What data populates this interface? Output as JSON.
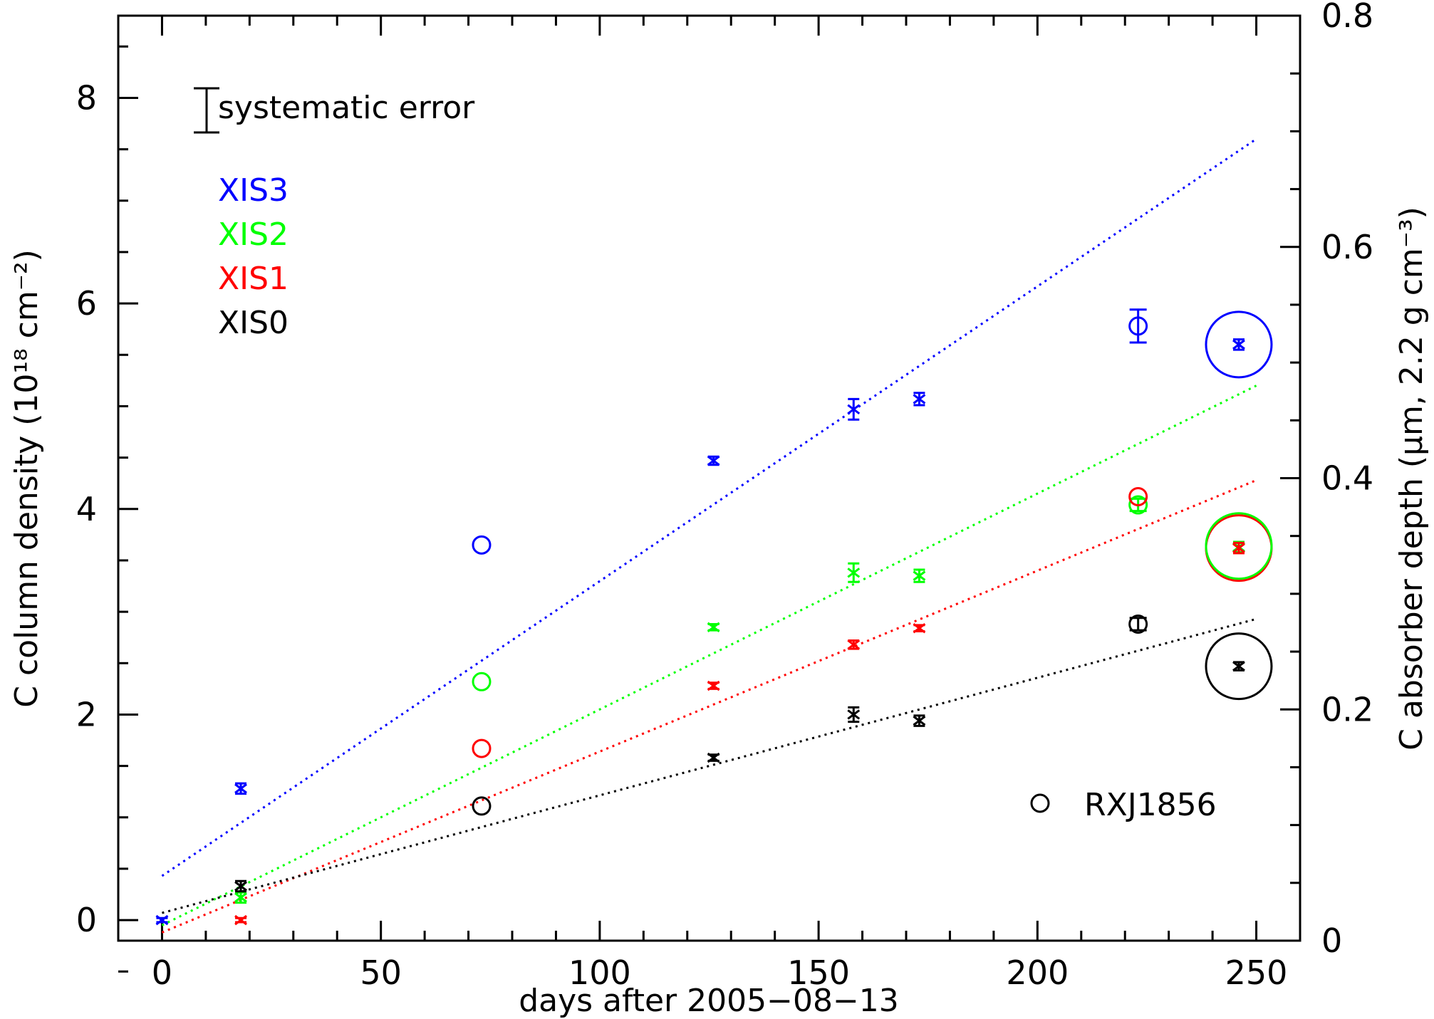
{
  "chart_data": {
    "type": "scatter",
    "xlabel": "days after 2005−08−13",
    "ylabel_left": "C column density (10¹⁸ cm⁻²)",
    "ylabel_right": "C absorber depth (μm, 2.2 g cm⁻³)",
    "xlim": [
      -10,
      260
    ],
    "ylim_left": [
      -0.2,
      8.8
    ],
    "ylim_right": [
      0,
      0.8
    ],
    "x_ticks": [
      "0",
      "50",
      "100",
      "150",
      "200",
      "250"
    ],
    "y_ticks_left": [
      "0",
      "2",
      "4",
      "6",
      "8"
    ],
    "y_ticks_right": [
      "0",
      "0.2",
      "0.4",
      "0.6",
      "0.8"
    ],
    "systematic_error_label": "systematic error",
    "reference_label": "RXJ1856",
    "series": [
      {
        "name": "XIS3",
        "color": "#0000ff",
        "points": [
          [
            0,
            0.0,
            0.02
          ],
          [
            18,
            1.28,
            0.05
          ],
          [
            126,
            4.47,
            0.04
          ],
          [
            158,
            4.97,
            0.1
          ],
          [
            173,
            5.07,
            0.06
          ],
          [
            246,
            5.6,
            0.05
          ]
        ],
        "rxj_points": [
          [
            73,
            3.65,
            0
          ],
          [
            223,
            5.78,
            0.16
          ]
        ],
        "fit": [
          [
            0,
            0.43
          ],
          [
            250,
            7.6
          ]
        ]
      },
      {
        "name": "XIS2",
        "color": "#00ff00",
        "points": [
          [
            18,
            0.22,
            0.05
          ],
          [
            126,
            2.85,
            0.03
          ],
          [
            158,
            3.38,
            0.09
          ],
          [
            173,
            3.35,
            0.06
          ],
          [
            246,
            3.63,
            0.05
          ]
        ],
        "rxj_points": [
          [
            73,
            2.32,
            0
          ],
          [
            223,
            4.04,
            0.06
          ]
        ],
        "fit": [
          [
            0,
            -0.05
          ],
          [
            250,
            5.2
          ]
        ]
      },
      {
        "name": "XIS1",
        "color": "#ff0000",
        "points": [
          [
            18,
            0.0,
            0.02
          ],
          [
            126,
            2.28,
            0.03
          ],
          [
            158,
            2.68,
            0.04
          ],
          [
            173,
            2.84,
            0.03
          ],
          [
            246,
            3.62,
            0.05
          ]
        ],
        "rxj_points": [
          [
            73,
            1.67,
            0
          ],
          [
            223,
            4.12,
            0
          ]
        ],
        "fit": [
          [
            0,
            -0.12
          ],
          [
            250,
            4.28
          ]
        ]
      },
      {
        "name": "XIS0",
        "color": "#000000",
        "points": [
          [
            18,
            0.33,
            0.05
          ],
          [
            126,
            1.58,
            0.03
          ],
          [
            158,
            2.0,
            0.07
          ],
          [
            173,
            1.94,
            0.05
          ],
          [
            246,
            2.47,
            0.04
          ]
        ],
        "rxj_points": [
          [
            73,
            1.11,
            0
          ],
          [
            223,
            2.88,
            0.06
          ]
        ],
        "fit": [
          [
            0,
            0.07
          ],
          [
            250,
            2.93
          ]
        ]
      }
    ],
    "big_circles": [
      {
        "x": 246,
        "y": 5.6,
        "color": "#0000ff"
      },
      {
        "x": 246,
        "y": 3.62,
        "color": "#ff0000"
      },
      {
        "x": 246,
        "y": 3.64,
        "color": "#00ff00"
      },
      {
        "x": 246,
        "y": 2.47,
        "color": "#000000"
      }
    ],
    "legend_placement": "top-left"
  }
}
